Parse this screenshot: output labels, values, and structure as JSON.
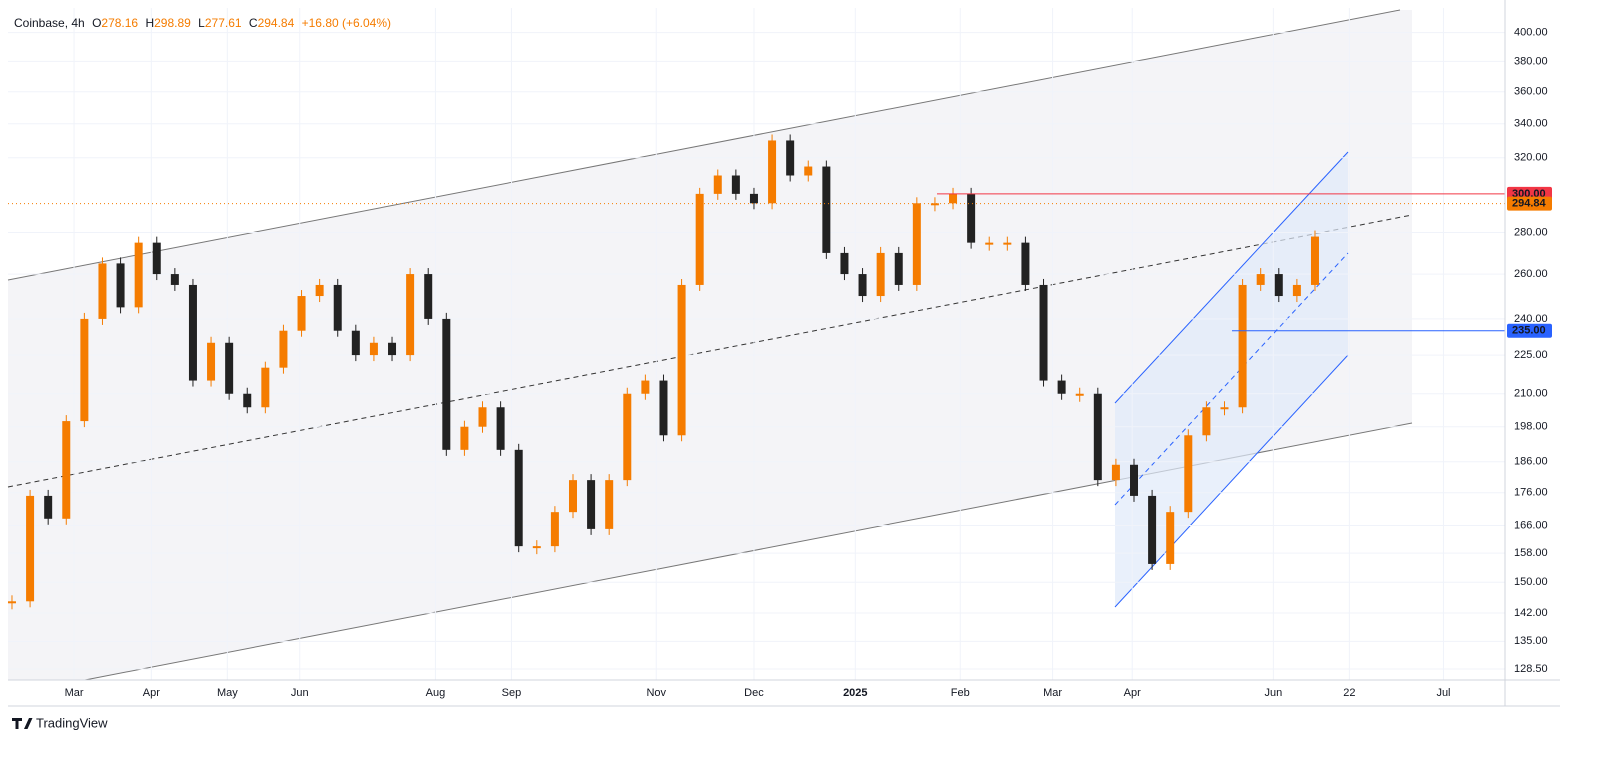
{
  "chart_data": {
    "type": "candlestick",
    "title": "Coinbase, 4h",
    "fields": [
      "O",
      "H",
      "L",
      "C"
    ],
    "ohlc": [
      278.16,
      298.89,
      277.61,
      294.84
    ],
    "change": "+16.80 (+6.04%)",
    "close_color": "#f57c00",
    "series": [
      {
        "up_color": "#f57c00",
        "down_color": "#222222",
        "values": [
          145,
          175,
          168,
          200,
          240,
          265,
          245,
          275,
          260,
          255,
          215,
          230,
          210,
          205,
          220,
          235,
          250,
          255,
          235,
          225,
          230,
          225,
          260,
          240,
          190,
          198,
          205,
          190,
          160,
          160,
          170,
          180,
          165,
          180,
          210,
          215,
          195,
          255,
          300,
          310,
          300,
          295,
          330,
          310,
          315,
          270,
          260,
          250,
          270,
          255,
          295,
          295,
          300,
          275,
          275,
          275,
          255,
          215,
          210,
          210,
          180,
          185,
          175,
          155,
          170,
          195,
          205,
          205,
          255,
          260,
          250,
          255,
          278
        ]
      }
    ],
    "levels": [
      {
        "value": 300,
        "label": "300.00",
        "color": "#f23645"
      },
      {
        "value": 235,
        "label": "235.00",
        "color": "#2962ff"
      }
    ],
    "log_scale": true,
    "grid": true,
    "ylim": [
      126,
      418
    ],
    "yticks": [
      {
        "value": 400,
        "label": "400.00"
      },
      {
        "value": 380,
        "label": "380.00"
      },
      {
        "value": 360,
        "label": "360.00"
      },
      {
        "value": 340,
        "label": "340.00"
      },
      {
        "value": 320,
        "label": "320.00"
      },
      {
        "value": 280,
        "label": "280.00"
      },
      {
        "value": 260,
        "label": "260.00"
      },
      {
        "value": 240,
        "label": "240.00"
      },
      {
        "value": 225,
        "label": "225.00"
      },
      {
        "value": 210,
        "label": "210.00"
      },
      {
        "value": 198,
        "label": "198.00"
      },
      {
        "value": 186,
        "label": "186.00"
      },
      {
        "value": 176,
        "label": "176.00"
      },
      {
        "value": 166,
        "label": "166.00"
      },
      {
        "value": 158,
        "label": "158.00"
      },
      {
        "value": 150,
        "label": "150.00"
      },
      {
        "value": 142,
        "label": "142.00"
      },
      {
        "value": 135,
        "label": "135.00"
      },
      {
        "value": 128.5,
        "label": "128.50"
      }
    ],
    "xlim": [
      -0.22,
      82.5
    ],
    "xticks": [
      {
        "value": 3.43,
        "label": "Mar"
      },
      {
        "value": 7.7,
        "label": "Apr"
      },
      {
        "value": 11.9,
        "label": "May"
      },
      {
        "value": 15.9,
        "label": "Jun"
      },
      {
        "value": 23.4,
        "label": "Aug"
      },
      {
        "value": 27.6,
        "label": "Sep"
      },
      {
        "value": 35.6,
        "label": "Nov"
      },
      {
        "value": 41.0,
        "label": "Dec"
      },
      {
        "value": 46.6,
        "label": "2025"
      },
      {
        "value": 52.4,
        "label": "Feb"
      },
      {
        "value": 57.5,
        "label": "Mar"
      },
      {
        "value": 61.9,
        "label": "Apr"
      },
      {
        "value": 69.7,
        "label": "Jun"
      },
      {
        "value": 73.9,
        "label": "22"
      },
      {
        "value": 79.1,
        "label": "Jul"
      }
    ],
    "brand": "TradingView"
  }
}
